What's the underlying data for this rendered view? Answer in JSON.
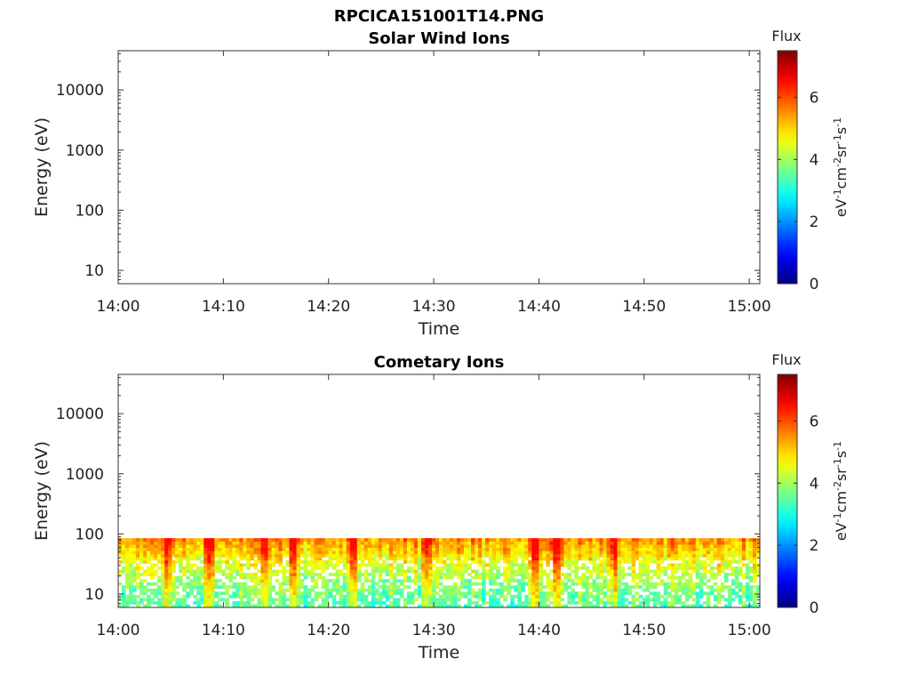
{
  "figure": {
    "title": "RPCICA151001T14.PNG"
  },
  "chart_data": [
    {
      "type": "heatmap",
      "title": "Solar Wind Ions",
      "xlabel": "Time",
      "ylabel": "Energy (eV)",
      "x_ticks": [
        "14:00",
        "14:10",
        "14:20",
        "14:30",
        "14:40",
        "14:50",
        "15:00"
      ],
      "x_range_minutes": [
        0,
        61
      ],
      "y_scale": "log",
      "y_ticks": [
        "10",
        "100",
        "1000",
        "10000"
      ],
      "y_range": [
        6,
        45000
      ],
      "grid": false,
      "colorbar": {
        "title": "Flux",
        "label": "eV-1cm-2sr-1s-1",
        "ticks": [
          "0",
          "2",
          "4",
          "6"
        ],
        "range": [
          0,
          7.5
        ],
        "colormap": "jet"
      },
      "data_region": null
    },
    {
      "type": "heatmap",
      "title": "Cometary Ions",
      "xlabel": "Time",
      "ylabel": "Energy (eV)",
      "x_ticks": [
        "14:00",
        "14:10",
        "14:20",
        "14:30",
        "14:40",
        "14:50",
        "15:00"
      ],
      "x_range_minutes": [
        0,
        61
      ],
      "y_scale": "log",
      "y_ticks": [
        "10",
        "100",
        "1000",
        "10000"
      ],
      "y_range": [
        6,
        45000
      ],
      "grid": false,
      "colorbar": {
        "title": "Flux",
        "label": "eV-1cm-2sr-1s-1",
        "ticks": [
          "0",
          "2",
          "4",
          "6"
        ],
        "range": [
          0,
          7.5
        ],
        "colormap": "jet"
      },
      "data_region": {
        "energy_range_eV": [
          6,
          85
        ],
        "time_range_minutes": [
          0,
          61
        ],
        "typical_flux_low_energy": 3.5,
        "typical_flux_high_energy": 5.5,
        "peak_flux": 6.5,
        "enhancement_times_minutes": [
          4.5,
          8.5,
          13.8,
          16.5,
          22,
          29.2,
          39.5,
          41.5,
          47
        ]
      }
    }
  ]
}
